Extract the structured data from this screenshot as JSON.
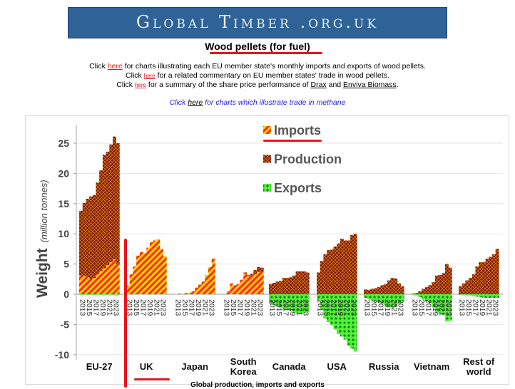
{
  "banner": {
    "title": "Global Timber .org.uk"
  },
  "heading": "Wood pellets (for fuel)",
  "links": [
    {
      "pre": "Click ",
      "link": "here",
      "post": " for charts illustrating each EU member state's monthly imports and exports of wood pellets."
    },
    {
      "pre": "Click ",
      "link": "here",
      "post": " for a related commentary on EU member states' trade in wood pellets."
    },
    {
      "pre": "Click ",
      "link": "here",
      "post": " for a summary of the share price performance of ",
      "link2": "Drax",
      "mid": " and ",
      "link3": "Enviva Biomass",
      "end": "."
    }
  ],
  "methane": {
    "pre": "Click ",
    "link": "here",
    "post": " for charts which illustrate trade in methane"
  },
  "caption": "Global production, imports and exports",
  "colors": {
    "imports_a": "#ff2a1a",
    "imports_b": "#ffd200",
    "production": "#7a1200",
    "production_hatch": "#d9801f",
    "exports": "#55f03a",
    "exports_dot": "#0a8a10",
    "banner": "#2f6296",
    "annotation": "#e8141c"
  },
  "chart_data": {
    "type": "bar",
    "stacked": true,
    "ylabel": "Weight",
    "ylabel_unit": "(million tonnes)",
    "ylim": [
      -10,
      27
    ],
    "yticks": [
      -10,
      -5,
      0,
      5,
      10,
      15,
      20,
      25
    ],
    "grid": true,
    "legend": {
      "placement": "top-center",
      "entries": [
        "Imports",
        "Production",
        "Exports"
      ]
    },
    "years": [
      2013,
      2014,
      2015,
      2016,
      2017,
      2018,
      2019,
      2020,
      2021,
      2022,
      2023,
      2024
    ],
    "year_tick_labels": [
      "2013",
      "2015",
      "2017",
      "2019",
      "2021",
      "2023"
    ],
    "groups": [
      {
        "name": "EU-27",
        "imports": [
          3.1,
          3.0,
          2.8,
          2.6,
          2.7,
          3.3,
          3.9,
          4.3,
          4.8,
          5.3,
          5.8,
          4.9
        ],
        "production": [
          10.7,
          12.1,
          13.0,
          13.6,
          13.7,
          15.2,
          16.6,
          18.8,
          18.8,
          19.5,
          20.3,
          20.1
        ],
        "exports": [
          -0.1,
          -0.1,
          -0.1,
          -0.1,
          -0.1,
          -0.1,
          -0.1,
          -0.1,
          -0.1,
          -0.1,
          -0.1,
          -0.1
        ]
      },
      {
        "name": "UK",
        "imports": [
          1.4,
          3.3,
          4.6,
          6.4,
          7.0,
          6.8,
          7.7,
          8.6,
          8.9,
          9.1,
          7.5,
          6.3
        ],
        "production": [
          0,
          0,
          0,
          0,
          0,
          0,
          0,
          0,
          0,
          0,
          0,
          0
        ],
        "exports": [
          0,
          0,
          0,
          0,
          0,
          0,
          0,
          0,
          0,
          0,
          0,
          0
        ]
      },
      {
        "name": "Japan",
        "imports": [
          0.05,
          0.1,
          0.1,
          0.2,
          0.3,
          0.5,
          1.1,
          1.6,
          2.1,
          3.2,
          4.5,
          5.9
        ],
        "production": [
          0,
          0,
          0,
          0,
          0,
          0,
          0,
          0,
          0,
          0,
          0,
          0
        ],
        "exports": [
          0,
          0,
          0,
          0,
          0,
          0,
          0,
          0,
          0,
          0,
          0,
          0
        ]
      },
      {
        "name": "South Korea",
        "imports": [
          0.1,
          0.5,
          1.8,
          1.5,
          1.7,
          2.4,
          3.4,
          3.0,
          3.2,
          3.3,
          3.7,
          3.7
        ],
        "production": [
          0,
          0,
          0,
          0,
          0,
          0,
          0.2,
          0.2,
          0.2,
          0.7,
          0.8,
          0.7
        ],
        "exports": [
          0,
          0,
          0,
          0,
          0,
          0,
          0,
          0,
          0,
          0,
          0,
          0
        ]
      },
      {
        "name": "Canada",
        "imports": [
          0,
          0,
          0,
          0,
          0,
          0,
          0,
          0,
          0,
          0,
          0,
          0
        ],
        "production": [
          1.7,
          1.9,
          2.1,
          2.2,
          2.7,
          2.7,
          2.8,
          3.1,
          3.8,
          3.8,
          3.8,
          3.6
        ],
        "exports": [
          -1.6,
          -1.8,
          -2.0,
          -2.2,
          -2.5,
          -2.6,
          -2.7,
          -3.0,
          -3.2,
          -3.2,
          -3.1,
          -3.0
        ]
      },
      {
        "name": "USA",
        "imports": [
          0,
          0,
          0,
          0,
          0,
          0,
          0,
          0,
          0,
          0,
          0,
          0
        ],
        "production": [
          3.6,
          5.5,
          6.6,
          7.3,
          7.4,
          7.9,
          8.4,
          9.2,
          8.9,
          8.9,
          9.8,
          10.0
        ],
        "exports": [
          -1.0,
          -2.5,
          -4.0,
          -4.6,
          -5.1,
          -5.8,
          -6.6,
          -7.0,
          -7.5,
          -8.5,
          -9.0,
          -9.5
        ]
      },
      {
        "name": "Russia",
        "imports": [
          0,
          0,
          0,
          0,
          0,
          0,
          0,
          0,
          0,
          0,
          0,
          0
        ],
        "production": [
          0.8,
          0.7,
          0.9,
          1.0,
          1.2,
          1.5,
          1.7,
          2.3,
          2.7,
          2.6,
          1.8,
          1.3
        ],
        "exports": [
          -0.6,
          -0.8,
          -1.0,
          -1.2,
          -1.4,
          -1.6,
          -1.9,
          -2.1,
          -2.3,
          -2.0,
          -1.6,
          -1.2
        ]
      },
      {
        "name": "Vietnam",
        "imports": [
          0,
          0,
          0,
          0,
          0,
          0,
          0,
          0,
          0,
          0,
          0,
          0
        ],
        "production": [
          0.1,
          0.2,
          0.5,
          0.9,
          1.2,
          1.5,
          2.0,
          3.1,
          3.2,
          3.5,
          5.0,
          4.4
        ],
        "exports": [
          -0.1,
          -0.2,
          -0.5,
          -0.9,
          -1.2,
          -1.5,
          -2.2,
          -3.0,
          -3.2,
          -3.4,
          -4.5,
          -4.4
        ]
      },
      {
        "name": "Rest of world",
        "imports": [
          0,
          0,
          0,
          0,
          0,
          0,
          0,
          0,
          0,
          0,
          0,
          0
        ],
        "production": [
          1.3,
          1.8,
          2.3,
          2.7,
          3.3,
          4.6,
          5.3,
          5.3,
          5.9,
          6.2,
          6.6,
          7.5
        ],
        "exports": [
          -0.1,
          -0.1,
          -0.2,
          -0.2,
          -0.3,
          -0.4,
          -0.5,
          -0.6,
          -0.6,
          -0.6,
          -0.6,
          -0.6
        ]
      }
    ]
  }
}
